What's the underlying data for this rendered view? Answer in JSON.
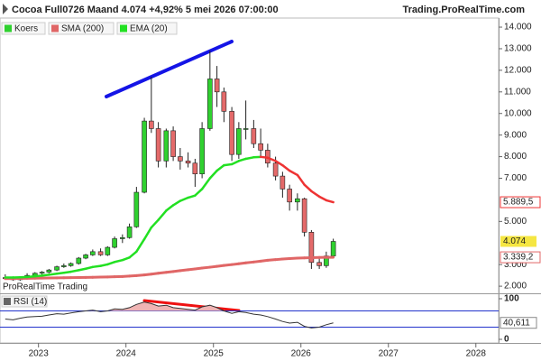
{
  "chart_data": [
    {
      "type": "candlestick",
      "title": "Cocoa Full0726 Maand 4.074 +4,92% 5 mei 2026 07:00:00",
      "source": "Trading.ProRealTime.com",
      "watermark": "ProRealTime Trading",
      "xlim": [
        2022.56,
        2028.26
      ],
      "xticks": [
        2023,
        2024,
        2025,
        2026,
        2027,
        2028
      ],
      "ylim": [
        1670,
        14420
      ],
      "yticks": [
        {
          "value": 14000,
          "label": "14.000"
        },
        {
          "value": 13000,
          "label": "13.000"
        },
        {
          "value": 12000,
          "label": "12.000"
        },
        {
          "value": 11000,
          "label": "11.000"
        },
        {
          "value": 10000,
          "label": "10.000"
        },
        {
          "value": 9000,
          "label": "9.000"
        },
        {
          "value": 8000,
          "label": "8.000"
        },
        {
          "value": 7000,
          "label": "7.000"
        },
        {
          "value": 5000,
          "label": "5.000"
        },
        {
          "value": 3000,
          "label": "3.000"
        },
        {
          "value": 2000,
          "label": "2.000"
        }
      ],
      "x": [
        2022.62,
        2022.71,
        2022.79,
        2022.87,
        2022.96,
        2023.04,
        2023.12,
        2023.21,
        2023.29,
        2023.37,
        2023.46,
        2023.54,
        2023.62,
        2023.71,
        2023.79,
        2023.87,
        2023.96,
        2024.04,
        2024.12,
        2024.21,
        2024.29,
        2024.37,
        2024.46,
        2024.54,
        2024.62,
        2024.71,
        2024.79,
        2024.87,
        2024.96,
        2025.04,
        2025.12,
        2025.21,
        2025.29,
        2025.37,
        2025.46,
        2025.54,
        2025.62,
        2025.71,
        2025.79,
        2025.87,
        2025.96,
        2026.04,
        2026.12,
        2026.21,
        2026.29,
        2026.37
      ],
      "candles": {
        "name": "Koers",
        "color": "#2fd12f",
        "up_color": "#2fd12f",
        "down_color": "#e46a6a",
        "open": [
          2400,
          2350,
          2300,
          2400,
          2500,
          2600,
          2650,
          2750,
          2900,
          2950,
          3050,
          3300,
          3450,
          3600,
          3450,
          3800,
          4200,
          4250,
          4750,
          6350,
          9650,
          9300,
          7800,
          9200,
          8000,
          7800,
          7700,
          7200,
          9300,
          11600,
          11000,
          10100,
          8100,
          9300,
          9300,
          8600,
          8300,
          7700,
          7100,
          6500,
          5900,
          6050,
          4500,
          3100,
          2950,
          3400
        ],
        "high": [
          2550,
          2450,
          2450,
          2600,
          2650,
          2700,
          2800,
          2950,
          3050,
          3100,
          3350,
          3500,
          3700,
          3750,
          3850,
          4300,
          4400,
          4900,
          6600,
          9800,
          11700,
          9600,
          9300,
          9400,
          8400,
          8200,
          7900,
          9600,
          12900,
          12200,
          11200,
          10300,
          9600,
          10600,
          9700,
          9300,
          8600,
          8000,
          7300,
          6700,
          6300,
          6100,
          4600,
          3300,
          3600,
          4200
        ],
        "low": [
          2300,
          2250,
          2250,
          2350,
          2400,
          2500,
          2600,
          2700,
          2850,
          2900,
          3000,
          3250,
          3400,
          3400,
          3400,
          3750,
          4000,
          4200,
          4700,
          6300,
          9100,
          7500,
          7500,
          7800,
          7400,
          7500,
          6600,
          7000,
          9200,
          10300,
          9600,
          7800,
          7900,
          8800,
          8400,
          8000,
          7500,
          6900,
          6100,
          5500,
          5500,
          4300,
          2800,
          2800,
          2850,
          3350
        ],
        "close": [
          2350,
          2300,
          2400,
          2500,
          2600,
          2650,
          2750,
          2900,
          2950,
          3050,
          3300,
          3450,
          3600,
          3450,
          3800,
          4200,
          4250,
          4750,
          6350,
          9650,
          9300,
          7800,
          9200,
          8000,
          7800,
          7700,
          7200,
          9300,
          11600,
          11000,
          10100,
          8100,
          9300,
          9300,
          8600,
          8300,
          7700,
          7100,
          6500,
          5900,
          6050,
          4500,
          3100,
          2950,
          3400,
          4074
        ],
        "value_labels": [
          null,
          null,
          null,
          null,
          null,
          null,
          null,
          null,
          null,
          null,
          null,
          null,
          null,
          null,
          null,
          null,
          null,
          null,
          null,
          null,
          null,
          null,
          null,
          null,
          null,
          null,
          null,
          null,
          null,
          null,
          null,
          null,
          null,
          null,
          null,
          null,
          null,
          null,
          null,
          null,
          null,
          null,
          null,
          null,
          null,
          "4.074"
        ],
        "label_color": "#f5e642"
      },
      "series": [
        {
          "name": "SMA (200)",
          "color": "#e06666",
          "values": [
            2350,
            2355,
            2360,
            2365,
            2370,
            2375,
            2380,
            2385,
            2390,
            2395,
            2400,
            2405,
            2410,
            2420,
            2430,
            2440,
            2450,
            2470,
            2490,
            2520,
            2560,
            2600,
            2640,
            2680,
            2720,
            2760,
            2800,
            2840,
            2880,
            2920,
            2960,
            3000,
            3040,
            3080,
            3120,
            3160,
            3200,
            3230,
            3260,
            3280,
            3300,
            3310,
            3320,
            3330,
            3335,
            3339.2
          ],
          "value_labels": [
            null,
            null,
            null,
            null,
            null,
            null,
            null,
            null,
            null,
            null,
            null,
            null,
            null,
            null,
            null,
            null,
            null,
            null,
            null,
            null,
            null,
            null,
            null,
            null,
            null,
            null,
            null,
            null,
            null,
            null,
            null,
            null,
            null,
            null,
            null,
            null,
            null,
            null,
            null,
            null,
            null,
            null,
            null,
            null,
            null,
            "3.339,2"
          ]
        },
        {
          "name": "EMA (20)",
          "color": "#22e022",
          "falling_color": "#ee3333",
          "values": [
            2400,
            2400,
            2410,
            2430,
            2460,
            2490,
            2530,
            2580,
            2620,
            2670,
            2740,
            2810,
            2890,
            2940,
            3010,
            3120,
            3210,
            3330,
            3600,
            4180,
            4720,
            5070,
            5500,
            5750,
            5950,
            6100,
            6200,
            6500,
            7000,
            7350,
            7600,
            7650,
            7800,
            7900,
            7970,
            7990,
            7950,
            7800,
            7600,
            7350,
            7150,
            6700,
            6400,
            6150,
            5980,
            5889.5
          ],
          "value_labels": [
            null,
            null,
            null,
            null,
            null,
            null,
            null,
            null,
            null,
            null,
            null,
            null,
            null,
            null,
            null,
            null,
            null,
            null,
            null,
            null,
            null,
            null,
            null,
            null,
            null,
            null,
            null,
            null,
            null,
            null,
            null,
            null,
            null,
            null,
            null,
            null,
            null,
            null,
            null,
            null,
            null,
            null,
            null,
            null,
            null,
            "5.889,5"
          ]
        }
      ]
    },
    {
      "type": "line",
      "title": "RSI (14)",
      "ylim": [
        0,
        100
      ],
      "yticks": [
        100,
        0
      ],
      "levels": [
        70,
        30
      ],
      "level_color": "#2233cc",
      "fill_color": "#f0b4b4",
      "series": [
        {
          "name": "RSI (14)",
          "color": "#333333",
          "values": [
            50,
            48,
            52,
            55,
            56,
            57,
            60,
            63,
            62,
            65,
            68,
            70,
            72,
            68,
            70,
            75,
            74,
            78,
            86,
            92,
            88,
            82,
            84,
            78,
            76,
            74,
            72,
            80,
            84,
            78,
            70,
            64,
            68,
            66,
            62,
            60,
            56,
            50,
            44,
            40,
            42,
            32,
            28,
            30,
            36,
            40.611
          ],
          "value_labels": [
            null,
            null,
            null,
            null,
            null,
            null,
            null,
            null,
            null,
            null,
            null,
            null,
            null,
            null,
            null,
            null,
            null,
            null,
            null,
            null,
            null,
            null,
            null,
            null,
            null,
            null,
            null,
            null,
            null,
            null,
            null,
            null,
            null,
            null,
            null,
            null,
            null,
            null,
            null,
            null,
            null,
            null,
            null,
            null,
            null,
            "40,611"
          ]
        }
      ]
    }
  ]
}
